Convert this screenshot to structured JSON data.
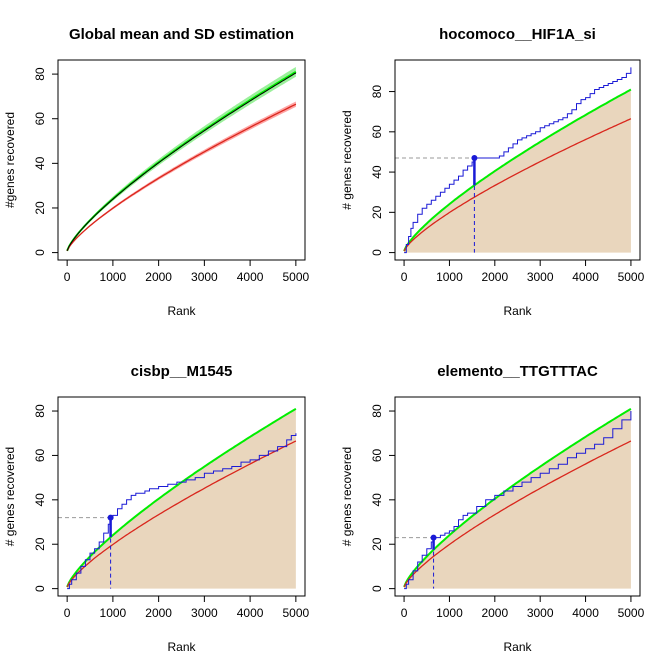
{
  "figure": {
    "background": "#ffffff",
    "colors": {
      "mean_plus_2sd": "#00ee00",
      "mean_plus_2sd_band": "#90ee90",
      "mean": "#d9261c",
      "mean_band": "#ff9a9a",
      "recovery": "#1a1ad6",
      "black_curve": "#000000",
      "fill_area": "#e9d6bd",
      "guide": "#999999"
    }
  },
  "chart_data": [
    {
      "id": "global",
      "type": "line",
      "title": "Global mean and SD estimation",
      "xlabel": "Rank",
      "ylabel": "#genes recovered",
      "xlim": [
        0,
        5000
      ],
      "ylim": [
        0,
        80
      ],
      "xticks": [
        "0",
        "1000",
        "2000",
        "3000",
        "4000",
        "5000"
      ],
      "yticks": [
        "0",
        "20",
        "40",
        "60",
        "80"
      ],
      "curves": {
        "mean_plus_2sd_end": 81,
        "mean_end": 66.5,
        "exponent": 0.77,
        "black_end": 80.5
      },
      "sd_band": true,
      "fill": false
    },
    {
      "id": "hocomoco",
      "type": "line",
      "title": "hocomoco__HIF1A_si",
      "xlabel": "Rank",
      "ylabel": "# genes recovered",
      "xlim": [
        0,
        5000
      ],
      "ylim": [
        0,
        90
      ],
      "xticks": [
        "0",
        "1000",
        "2000",
        "3000",
        "4000",
        "5000"
      ],
      "yticks": [
        "0",
        "20",
        "40",
        "60",
        "80"
      ],
      "curves": {
        "mean_plus_2sd_end": 81,
        "mean_end": 66.5,
        "exponent": 0.77
      },
      "fill": true,
      "recovery": {
        "x": [
          0,
          50,
          100,
          150,
          200,
          300,
          400,
          500,
          600,
          700,
          800,
          900,
          1000,
          1100,
          1200,
          1300,
          1400,
          1500,
          1550,
          1600,
          1700,
          1800,
          1900,
          2000,
          2100,
          2200,
          2300,
          2400,
          2500,
          2600,
          2700,
          2800,
          2900,
          3000,
          3100,
          3200,
          3300,
          3400,
          3500,
          3600,
          3700,
          3800,
          3900,
          4000,
          4100,
          4200,
          4300,
          4400,
          4500,
          4600,
          4700,
          4800,
          4900,
          5000
        ],
        "y": [
          0,
          4,
          8,
          12,
          15,
          19,
          22,
          24,
          26,
          28,
          30,
          32,
          34,
          36,
          38,
          41,
          43,
          45,
          47,
          47,
          47,
          47,
          47,
          47,
          48,
          50,
          52,
          54,
          56,
          57,
          58,
          59,
          60,
          62,
          63,
          64,
          65,
          66,
          67,
          69,
          71,
          74,
          76,
          77,
          79,
          81,
          82,
          83,
          84,
          85,
          86,
          87,
          89,
          92
        ]
      },
      "marker": {
        "x": 1550,
        "y": 47
      }
    },
    {
      "id": "cisbp",
      "type": "line",
      "title": "cisbp__M1545",
      "xlabel": "Rank",
      "ylabel": "# genes recovered",
      "xlim": [
        0,
        5000
      ],
      "ylim": [
        0,
        80
      ],
      "xticks": [
        "0",
        "1000",
        "2000",
        "3000",
        "4000",
        "5000"
      ],
      "yticks": [
        "0",
        "20",
        "40",
        "60",
        "80"
      ],
      "curves": {
        "mean_plus_2sd_end": 81,
        "mean_end": 66.5,
        "exponent": 0.77
      },
      "fill": true,
      "recovery": {
        "x": [
          0,
          50,
          100,
          200,
          300,
          400,
          500,
          600,
          700,
          800,
          900,
          950,
          1000,
          1100,
          1200,
          1300,
          1400,
          1500,
          1600,
          1700,
          1800,
          1900,
          2000,
          2200,
          2400,
          2600,
          2800,
          3000,
          3200,
          3400,
          3600,
          3800,
          4000,
          4200,
          4400,
          4600,
          4800,
          4900,
          5000
        ],
        "y": [
          0,
          2,
          4,
          7,
          10,
          13,
          16,
          18,
          21,
          25,
          29,
          32,
          33,
          36,
          38,
          40,
          42,
          43,
          43,
          44,
          45,
          45,
          46,
          47,
          48,
          49,
          50,
          52,
          53,
          54,
          55,
          57,
          58,
          60,
          62,
          64,
          67,
          69,
          70
        ]
      },
      "marker": {
        "x": 950,
        "y": 32
      }
    },
    {
      "id": "elemento",
      "type": "line",
      "title": "elemento__TTGTTTAC",
      "xlabel": "Rank",
      "ylabel": "# genes recovered",
      "xlim": [
        0,
        5000
      ],
      "ylim": [
        0,
        80
      ],
      "xticks": [
        "0",
        "1000",
        "2000",
        "3000",
        "4000",
        "5000"
      ],
      "yticks": [
        "0",
        "20",
        "40",
        "60",
        "80"
      ],
      "curves": {
        "mean_plus_2sd_end": 81,
        "mean_end": 66.5,
        "exponent": 0.77
      },
      "fill": true,
      "recovery": {
        "x": [
          0,
          50,
          100,
          200,
          300,
          400,
          500,
          600,
          650,
          700,
          800,
          900,
          1000,
          1100,
          1200,
          1300,
          1400,
          1600,
          1800,
          2000,
          2200,
          2400,
          2600,
          2800,
          3000,
          3200,
          3400,
          3600,
          3800,
          4000,
          4200,
          4400,
          4600,
          4800,
          5000
        ],
        "y": [
          0,
          2,
          4,
          8,
          12,
          15,
          18,
          21,
          23,
          23,
          24,
          25,
          26,
          28,
          31,
          33,
          34,
          37,
          40,
          42,
          44,
          46,
          48,
          50,
          52,
          54,
          56,
          59,
          61,
          63,
          65,
          68,
          72,
          76,
          80
        ]
      },
      "marker": {
        "x": 650,
        "y": 23
      }
    }
  ]
}
